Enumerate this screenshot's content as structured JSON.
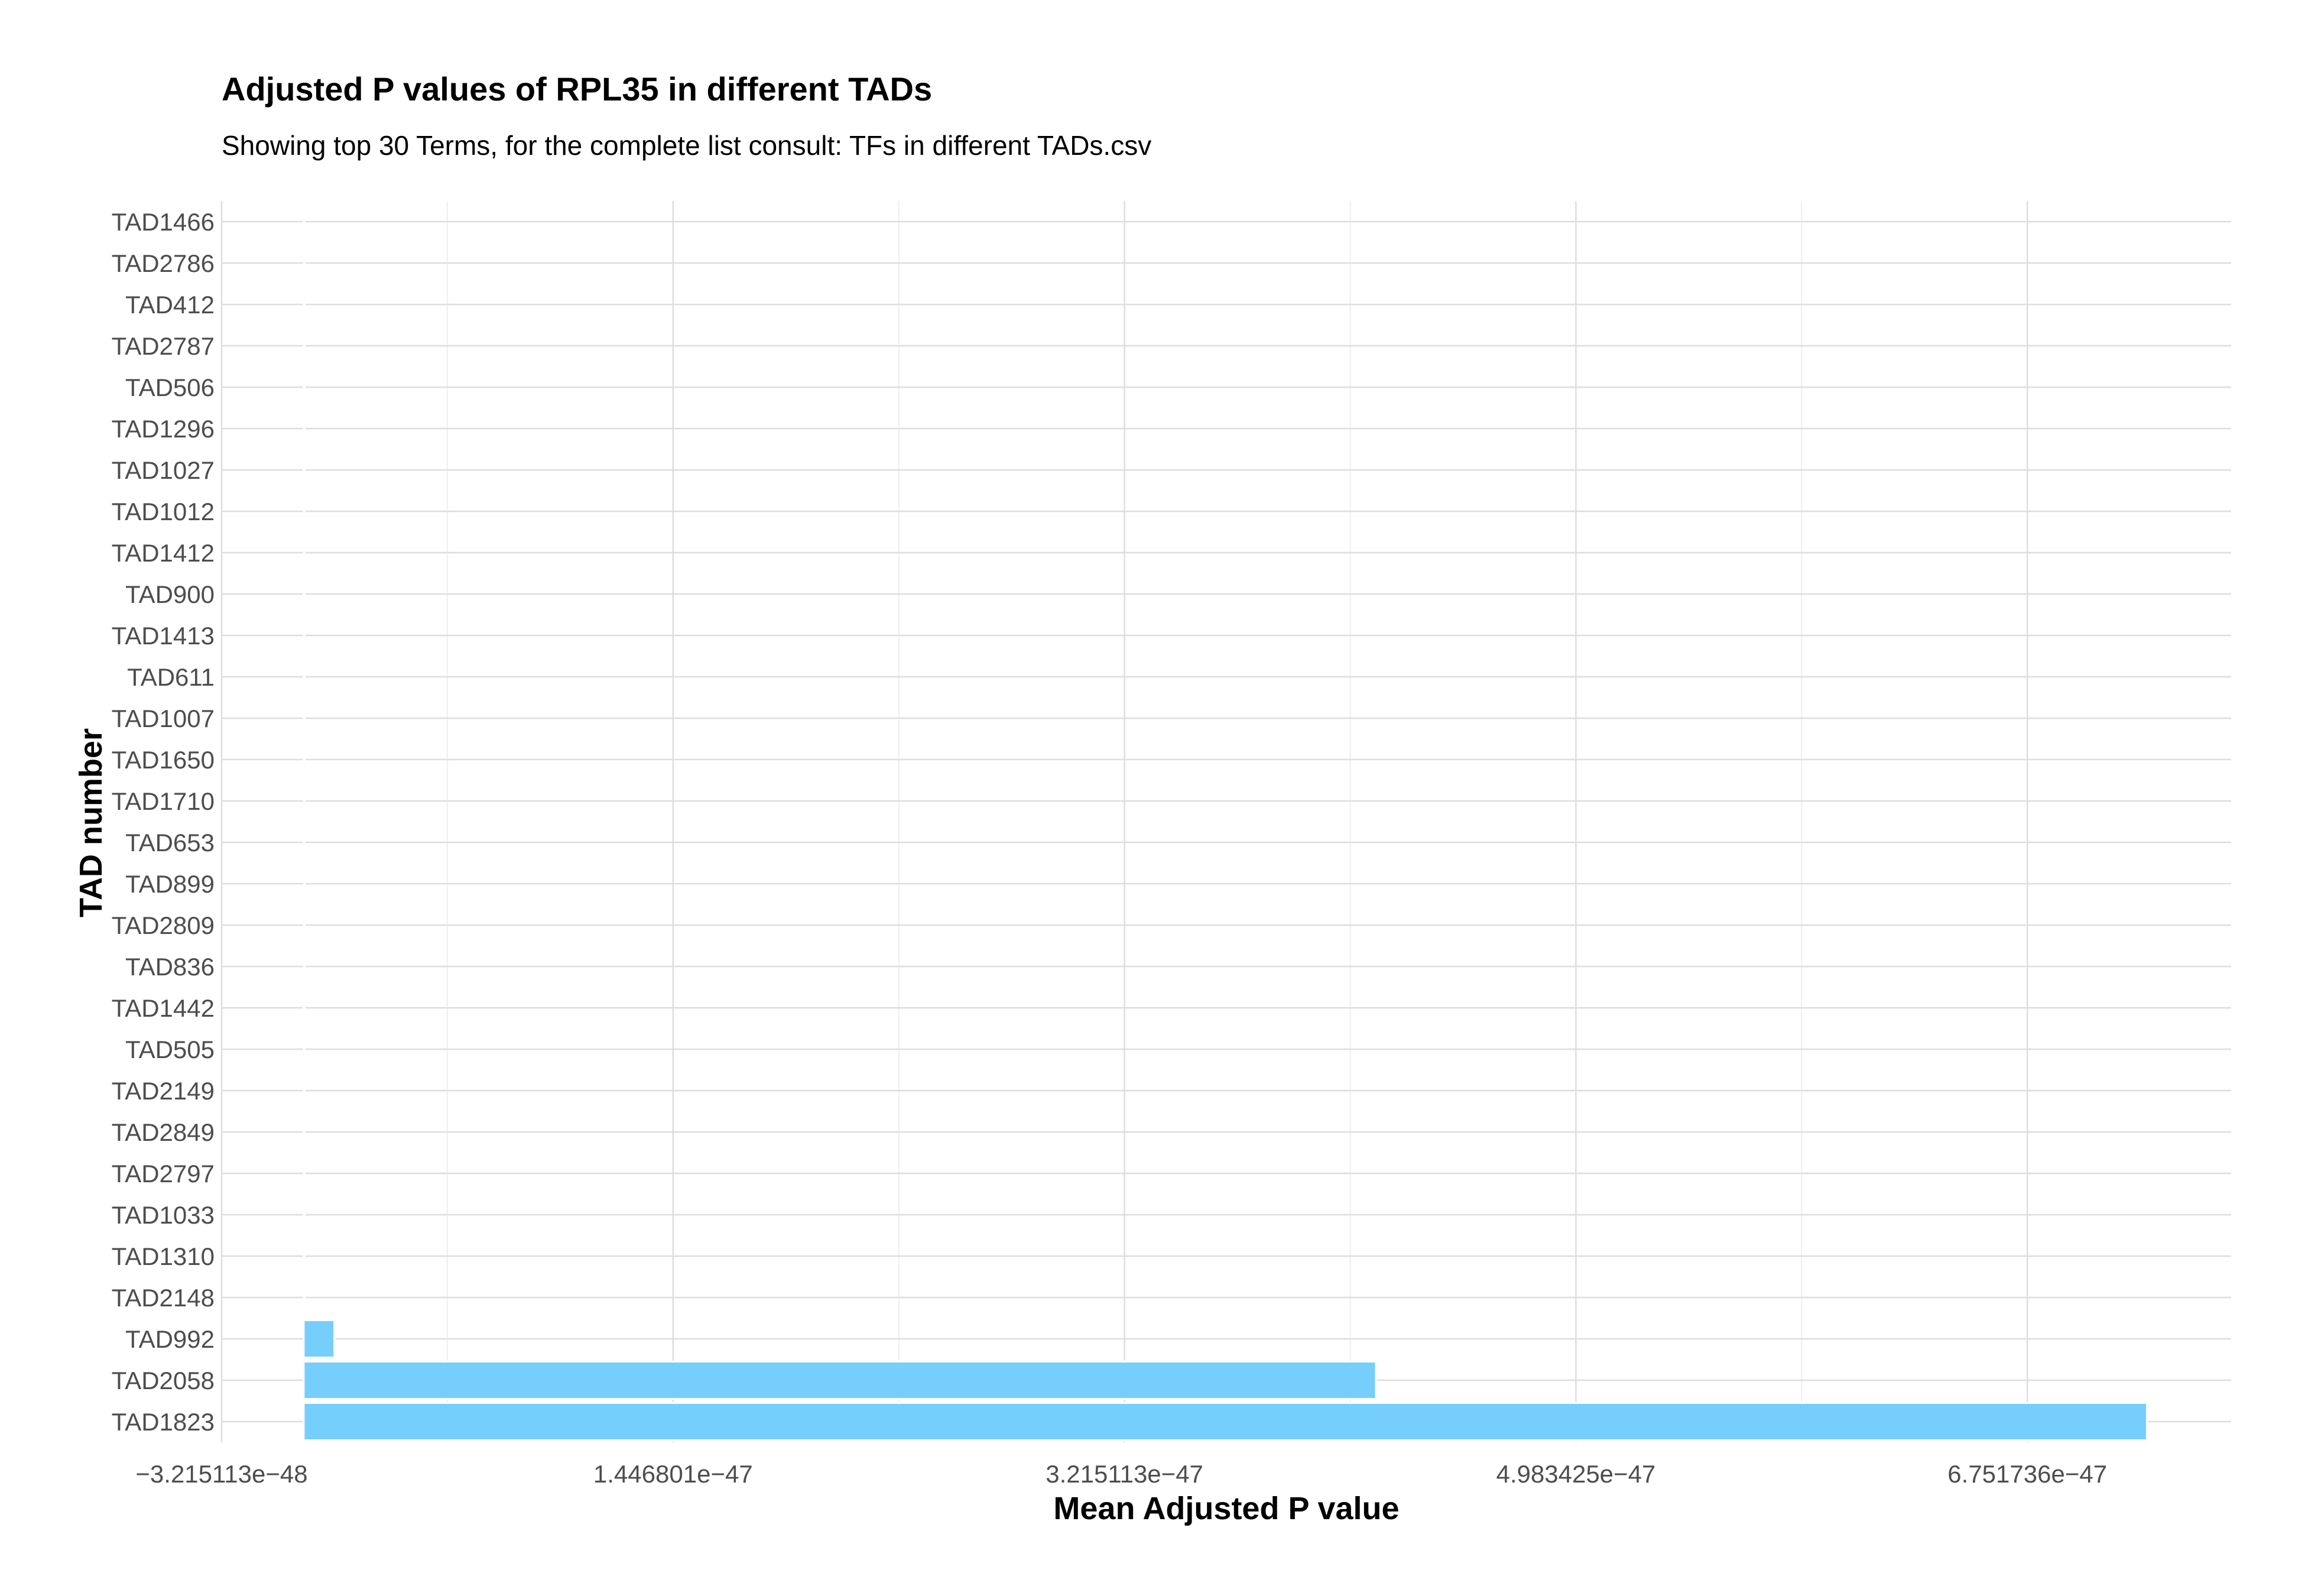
{
  "chart_data": {
    "type": "bar",
    "orientation": "horizontal",
    "title": "Adjusted P values of RPL35 in different TADs",
    "subtitle": "Showing top 30 Terms, for the complete list consult: TFs in different TADs.csv",
    "xlabel": "Mean Adjusted P value",
    "ylabel": "TAD number",
    "categories": [
      "TAD1466",
      "TAD2786",
      "TAD412",
      "TAD2787",
      "TAD506",
      "TAD1296",
      "TAD1027",
      "TAD1012",
      "TAD1412",
      "TAD900",
      "TAD1413",
      "TAD611",
      "TAD1007",
      "TAD1650",
      "TAD1710",
      "TAD653",
      "TAD899",
      "TAD2809",
      "TAD836",
      "TAD1442",
      "TAD505",
      "TAD2149",
      "TAD2849",
      "TAD2797",
      "TAD1033",
      "TAD1310",
      "TAD2148",
      "TAD992",
      "TAD2058",
      "TAD1823"
    ],
    "values": [
      0,
      0,
      0,
      0,
      0,
      0,
      0,
      0,
      0,
      0,
      0,
      0,
      0,
      0,
      0,
      0,
      0,
      0,
      0,
      0,
      0,
      0,
      0,
      0,
      0,
      0,
      1.5e-50,
      1.2e-48,
      4.2e-47,
      7.22e-47
    ],
    "xlim": [
      -3.215113e-48,
      7.55e-47
    ],
    "xticks": [
      -3.215113e-48,
      1.446801e-47,
      3.215113e-47,
      4.983425e-47,
      6.751736e-47
    ],
    "xtick_labels": [
      "−3.215113e−48",
      "1.446801e−47",
      "3.215113e−47",
      "4.983425e−47",
      "6.751736e−47"
    ],
    "bar_color": "#76CEFB",
    "bar_outline": "#ffffff",
    "grid_major_color": "#dedede",
    "grid_minor_color": "#efefef",
    "grid": true,
    "legend": "none"
  }
}
